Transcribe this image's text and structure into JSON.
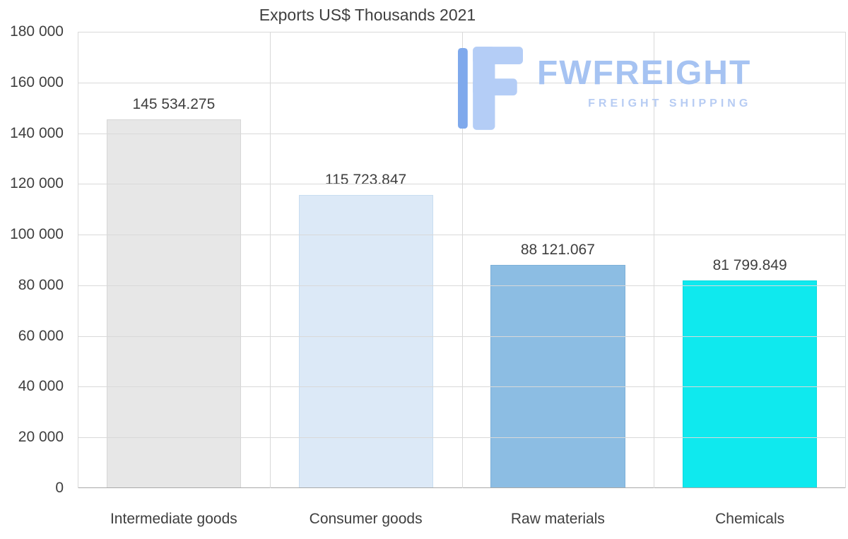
{
  "title": "Exports US$ Thousands 2021",
  "logo": {
    "name": "FWFREIGHT",
    "subtitle": "FREIGHT SHIPPING",
    "name_color": "#a6c3f2",
    "subtitle_color": "#b7ccf3",
    "icon_dark": "#7fa9ec",
    "icon_light": "#b4cdf6"
  },
  "colors": {
    "background": "#ffffff",
    "grid": "#d9d9d9",
    "axis": "#a9a9a9",
    "text": "#3f3f3f"
  },
  "chart_data": {
    "type": "bar",
    "title": "Exports US$ Thousands 2021",
    "categories": [
      "Intermediate goods",
      "Consumer goods",
      "Raw materials",
      "Chemicals"
    ],
    "values": [
      145534.275,
      115723.847,
      88121.067,
      81799.849
    ],
    "value_labels": [
      "145 534.275",
      "115 723.847",
      "88 121.067",
      "81 799.849"
    ],
    "bar_colors": [
      "#e7e7e7",
      "#dce9f7",
      "#8cbde3",
      "#0fe9ee"
    ],
    "bar_border_colors": [
      "#d6d6d6",
      "#c8ddf0",
      "#7db0d8",
      "#0cd9de"
    ],
    "xlabel": "",
    "ylabel": "",
    "ylim": [
      0,
      180000
    ],
    "y_ticks": [
      0,
      20000,
      40000,
      60000,
      80000,
      100000,
      120000,
      140000,
      160000,
      180000
    ],
    "y_tick_labels": [
      "0",
      "20 000",
      "40 000",
      "60 000",
      "80 000",
      "100 000",
      "120 000",
      "140 000",
      "160 000",
      "180 000"
    ],
    "grid": "horizontal gridlines + vertical category separators",
    "legend": "none"
  }
}
